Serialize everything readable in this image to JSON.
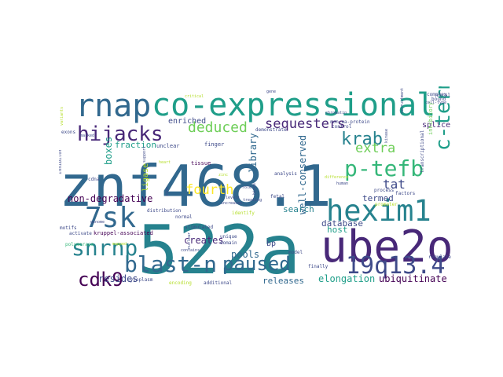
{
  "colors": {
    "background": "#ffffff",
    "palette": [
      "#440154",
      "#482878",
      "#3e4a89",
      "#31688e",
      "#26828e",
      "#1f9e89",
      "#35b779",
      "#6ece58",
      "#b5de2b",
      "#fde725"
    ]
  },
  "words": [
    {
      "text": "522a",
      "color": "#26828e"
    },
    {
      "text": "znf468.1",
      "color": "#31688e"
    },
    {
      "text": "co-expressional",
      "color": "#1f9e89"
    },
    {
      "text": "ube2o",
      "color": "#482878"
    },
    {
      "text": "rnap",
      "color": "#31688e"
    },
    {
      "text": "hexim1",
      "color": "#26828e"
    },
    {
      "text": "7sk",
      "color": "#31688e"
    },
    {
      "text": "blast-n",
      "color": "#31688e"
    },
    {
      "text": "19q13.4",
      "color": "#3e4a89"
    },
    {
      "text": "hijacks",
      "color": "#482878"
    },
    {
      "text": "snrnp",
      "color": "#26828e"
    },
    {
      "text": "p-tefb",
      "color": "#35b779"
    },
    {
      "text": "c-termini",
      "color": "#1f9e89"
    },
    {
      "text": "paused",
      "color": "#31688e"
    },
    {
      "text": "cdk9",
      "color": "#440154"
    },
    {
      "text": "krab",
      "color": "#26828e"
    },
    {
      "text": "sequesters",
      "color": "#482878"
    },
    {
      "text": "deduced",
      "color": "#6ece58"
    },
    {
      "text": "tat",
      "color": "#3e4a89"
    },
    {
      "text": "extra",
      "color": "#6ece58"
    },
    {
      "text": "fourth",
      "color": "#fde725"
    },
    {
      "text": "ubiquitinate",
      "color": "#440154"
    },
    {
      "text": "elongation",
      "color": "#1f9e89"
    },
    {
      "text": "releases",
      "color": "#31688e"
    },
    {
      "text": "well-conserved",
      "color": "#31688e"
    },
    {
      "text": "library",
      "color": "#31688e"
    },
    {
      "text": "creates",
      "color": "#482878"
    },
    {
      "text": "resides",
      "color": "#3e4a89"
    },
    {
      "text": "pools",
      "color": "#31688e"
    },
    {
      "text": "search",
      "color": "#26828e"
    },
    {
      "text": "host",
      "color": "#1f9e89"
    },
    {
      "text": "database",
      "color": "#3e4a89"
    },
    {
      "text": "termed",
      "color": "#3e4a89"
    },
    {
      "text": "non-degradative",
      "color": "#440154"
    },
    {
      "text": "boxes",
      "color": "#1f9e89"
    },
    {
      "text": "enriched",
      "color": "#3e4a89"
    },
    {
      "text": "fraction",
      "color": "#1f9e89"
    },
    {
      "text": "splice",
      "color": "#482878"
    },
    {
      "text": "ligase",
      "color": "#b5de2b"
    },
    {
      "text": "bp",
      "color": "#3e4a89"
    },
    {
      "text": "unclear",
      "color": "#3e4a89"
    },
    {
      "text": "finger",
      "color": "#3e4a89"
    },
    {
      "text": "tissue",
      "color": "#440154"
    },
    {
      "text": "analysis",
      "color": "#3e4a89"
    },
    {
      "text": "demonstrate",
      "color": "#3e4a89"
    },
    {
      "text": "non-aa-protein",
      "color": "#3e4a89"
    },
    {
      "text": "control",
      "color": "#3e4a89"
    },
    {
      "text": "inhibitory",
      "color": "#6ece58"
    },
    {
      "text": "kruppel-associated",
      "color": "#440154"
    },
    {
      "text": "motifs",
      "color": "#3e4a89"
    },
    {
      "text": "activate",
      "color": "#3e4a89"
    },
    {
      "text": "polymerase",
      "color": "#35b779"
    },
    {
      "text": "cytoplasm",
      "color": "#3e4a89"
    },
    {
      "text": "encoding",
      "color": "#b5de2b"
    },
    {
      "text": "additional",
      "color": "#3e4a89"
    },
    {
      "text": "distribution",
      "color": "#3e4a89"
    },
    {
      "text": "normal",
      "color": "#3e4a89"
    },
    {
      "text": "stimulated",
      "color": "#3e4a89"
    },
    {
      "text": "unique",
      "color": "#3e4a89"
    },
    {
      "text": "domain",
      "color": "#3e4a89"
    },
    {
      "text": "identify",
      "color": "#b5de2b"
    },
    {
      "text": "fetal",
      "color": "#3e4a89"
    },
    {
      "text": "model",
      "color": "#3e4a89"
    },
    {
      "text": "finally",
      "color": "#3e4a89"
    },
    {
      "text": "regulate",
      "color": "#3e4a89"
    },
    {
      "text": "factors",
      "color": "#3e4a89"
    },
    {
      "text": "process",
      "color": "#3e4a89"
    },
    {
      "text": "promoter",
      "color": "#b5de2b"
    },
    {
      "text": "bound",
      "color": "#3e4a89"
    },
    {
      "text": "viral",
      "color": "#3e4a89"
    },
    {
      "text": "complex",
      "color": "#3e4a89"
    },
    {
      "text": "critical",
      "color": "#b5de2b"
    },
    {
      "text": "gene",
      "color": "#3e4a89"
    },
    {
      "text": "variants",
      "color": "#b5de2b"
    },
    {
      "text": "exons",
      "color": "#3e4a89"
    },
    {
      "text": "inhibitor",
      "color": "#3e4a89"
    },
    {
      "text": "cdna",
      "color": "#3e4a89"
    },
    {
      "text": "genome",
      "color": "#3e4a89"
    },
    {
      "text": "heart",
      "color": "#b5de2b"
    },
    {
      "text": "levels",
      "color": "#3e4a89"
    },
    {
      "text": "binds",
      "color": "#3e4a89"
    },
    {
      "text": "human",
      "color": "#3e4a89"
    },
    {
      "text": "chromatin",
      "color": "#3e4a89"
    },
    {
      "text": "transcriptional",
      "color": "#3e4a89"
    },
    {
      "text": "increases",
      "color": "#3e4a89"
    },
    {
      "text": "treating",
      "color": "#3e4a89"
    },
    {
      "text": "difference",
      "color": "#b5de2b"
    },
    {
      "text": "zinc",
      "color": "#3e4a89"
    },
    {
      "text": "mapped",
      "color": "#b5de2b"
    },
    {
      "text": "nuclear",
      "color": "#3e4a89"
    },
    {
      "text": "role",
      "color": "#3e4a89"
    },
    {
      "text": "cell-type",
      "color": "#3e4a89"
    },
    {
      "text": "kinase",
      "color": "#3e4a89"
    },
    {
      "text": "support",
      "color": "#3e4a89"
    },
    {
      "text": "marked",
      "color": "#3e4a89"
    },
    {
      "text": "recruitment",
      "color": "#3e4a89"
    },
    {
      "text": "contains",
      "color": "#3e4a89"
    },
    {
      "text": "zinc",
      "color": "#b5de2b"
    }
  ]
}
